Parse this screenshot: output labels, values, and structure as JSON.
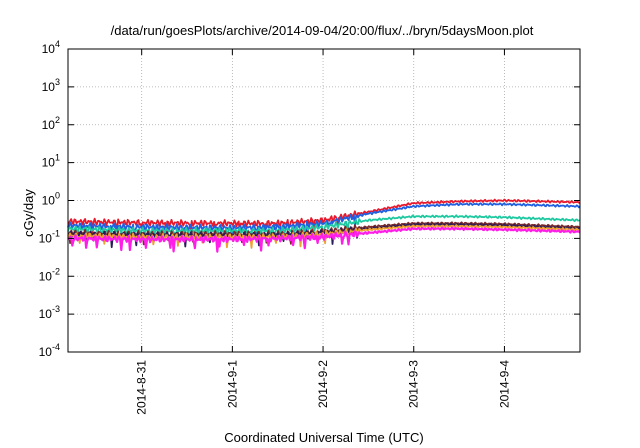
{
  "chart_data": {
    "type": "line",
    "title": "/data/run/goesPlots/archive/2014-09-04/20:00/flux/../bryn/5daysMoon.plot",
    "xlabel": "Coordinated Universal Time (UTC)",
    "ylabel": "cGy/day",
    "yscale": "log",
    "grid": true,
    "x_start": "2014-08-30T04:30",
    "x_end": "2014-09-04T20:00",
    "ylim": [
      0.0001,
      10000
    ],
    "x_ticks": [
      {
        "label": "2014-8-31",
        "value": "2014-08-31T00:00"
      },
      {
        "label": "2014-9-1",
        "value": "2014-09-01T00:00"
      },
      {
        "label": "2014-9-2",
        "value": "2014-09-02T00:00"
      },
      {
        "label": "2014-9-3",
        "value": "2014-09-03T00:00"
      },
      {
        "label": "2014-9-4",
        "value": "2014-09-04T00:00"
      }
    ],
    "y_ticks": [
      {
        "base": "10",
        "exp": "-4",
        "value": 0.0001
      },
      {
        "base": "10",
        "exp": "-3",
        "value": 0.001
      },
      {
        "base": "10",
        "exp": "-2",
        "value": 0.01
      },
      {
        "base": "10",
        "exp": "-1",
        "value": 0.1
      },
      {
        "base": "10",
        "exp": "0",
        "value": 1
      },
      {
        "base": "10",
        "exp": "1",
        "value": 10
      },
      {
        "base": "10",
        "exp": "2",
        "value": 100
      },
      {
        "base": "10",
        "exp": "3",
        "value": 1000
      },
      {
        "base": "10",
        "exp": "4",
        "value": 10000
      }
    ],
    "series": [
      {
        "color": "#e8192c",
        "x": [
          "2014-08-30T04:30",
          "2014-08-31T00:00",
          "2014-09-01T00:00",
          "2014-09-01T12:00",
          "2014-09-02T00:00",
          "2014-09-02T12:00",
          "2014-09-03T00:00",
          "2014-09-03T12:00",
          "2014-09-04T00:00",
          "2014-09-04T20:00"
        ],
        "y": [
          0.28,
          0.26,
          0.25,
          0.25,
          0.3,
          0.5,
          0.85,
          0.95,
          1.0,
          0.9
        ]
      },
      {
        "color": "#1f5fe0",
        "x": [
          "2014-08-30T04:30",
          "2014-08-31T00:00",
          "2014-09-01T00:00",
          "2014-09-01T12:00",
          "2014-09-02T00:00",
          "2014-09-02T12:00",
          "2014-09-03T00:00",
          "2014-09-03T12:00",
          "2014-09-04T00:00",
          "2014-09-04T20:00"
        ],
        "y": [
          0.22,
          0.2,
          0.19,
          0.2,
          0.25,
          0.45,
          0.7,
          0.8,
          0.8,
          0.7
        ]
      },
      {
        "color": "#1ec8a0",
        "x": [
          "2014-08-30T04:30",
          "2014-08-31T00:00",
          "2014-09-01T00:00",
          "2014-09-01T12:00",
          "2014-09-02T00:00",
          "2014-09-02T12:00",
          "2014-09-03T00:00",
          "2014-09-03T12:00",
          "2014-09-04T00:00",
          "2014-09-04T20:00"
        ],
        "y": [
          0.18,
          0.16,
          0.16,
          0.16,
          0.2,
          0.3,
          0.38,
          0.38,
          0.36,
          0.3
        ]
      },
      {
        "color": "#7a2a2a",
        "x": [
          "2014-08-30T04:30",
          "2014-08-31T00:00",
          "2014-09-01T00:00",
          "2014-09-01T12:00",
          "2014-09-02T00:00",
          "2014-09-02T12:00",
          "2014-09-03T00:00",
          "2014-09-03T12:00",
          "2014-09-04T00:00",
          "2014-09-04T20:00"
        ],
        "y": [
          0.14,
          0.13,
          0.13,
          0.13,
          0.15,
          0.2,
          0.25,
          0.25,
          0.24,
          0.2
        ]
      },
      {
        "color": "#2a1c5a",
        "x": [
          "2014-08-30T04:30",
          "2014-08-31T00:00",
          "2014-09-01T00:00",
          "2014-09-01T12:00",
          "2014-09-02T00:00",
          "2014-09-02T12:00",
          "2014-09-03T00:00",
          "2014-09-03T12:00",
          "2014-09-04T00:00",
          "2014-09-04T20:00"
        ],
        "y": [
          0.13,
          0.12,
          0.12,
          0.12,
          0.14,
          0.18,
          0.23,
          0.23,
          0.22,
          0.18
        ]
      },
      {
        "color": "#f0a030",
        "x": [
          "2014-08-30T04:30",
          "2014-08-31T00:00",
          "2014-09-01T00:00",
          "2014-09-01T12:00",
          "2014-09-02T00:00",
          "2014-09-02T12:00",
          "2014-09-03T00:00",
          "2014-09-03T12:00",
          "2014-09-04T00:00",
          "2014-09-04T20:00"
        ],
        "y": [
          0.12,
          0.11,
          0.11,
          0.11,
          0.13,
          0.17,
          0.21,
          0.21,
          0.2,
          0.17
        ]
      },
      {
        "color": "#ff1ee8",
        "x": [
          "2014-08-30T04:30",
          "2014-08-31T00:00",
          "2014-09-01T00:00",
          "2014-09-01T12:00",
          "2014-09-02T00:00",
          "2014-09-02T12:00",
          "2014-09-03T00:00",
          "2014-09-03T12:00",
          "2014-09-04T00:00",
          "2014-09-04T20:00"
        ],
        "y": [
          0.1,
          0.095,
          0.095,
          0.1,
          0.11,
          0.14,
          0.18,
          0.18,
          0.17,
          0.15
        ]
      }
    ]
  }
}
